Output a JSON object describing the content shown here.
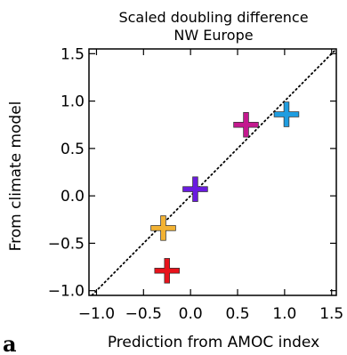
{
  "panel_letter": "a",
  "chart_data": {
    "type": "scatter",
    "title": "Scaled doubling difference",
    "subtitle": "NW Europe",
    "xlabel": "Prediction from AMOC index",
    "ylabel": "From climate model",
    "xlim": [
      -1.08,
      1.55
    ],
    "ylim": [
      -1.05,
      1.55
    ],
    "x_ticks": [
      -1.0,
      -0.5,
      0.0,
      0.5,
      1.0,
      1.5
    ],
    "x_tick_labels": [
      "−1.0",
      "−0.5",
      "0.0",
      "0.5",
      "1.0",
      "1.5"
    ],
    "y_ticks": [
      -1.0,
      -0.5,
      0.0,
      0.5,
      1.0,
      1.5
    ],
    "y_tick_labels": [
      "−1.0",
      "−0.5",
      "0.0",
      "0.5",
      "1.0",
      "1.5"
    ],
    "grid": false,
    "reference_line": {
      "style": "dotted",
      "x": [
        -1.08,
        1.55
      ],
      "y": [
        -1.08,
        1.55
      ]
    },
    "points": [
      {
        "x": -0.25,
        "y": -0.79,
        "color": "#e8121b"
      },
      {
        "x": -0.29,
        "y": -0.34,
        "color": "#f2b233"
      },
      {
        "x": 0.05,
        "y": 0.07,
        "color": "#6a1be0"
      },
      {
        "x": 0.59,
        "y": 0.75,
        "color": "#c4198f"
      },
      {
        "x": 1.02,
        "y": 0.86,
        "color": "#1f9de0"
      }
    ]
  }
}
